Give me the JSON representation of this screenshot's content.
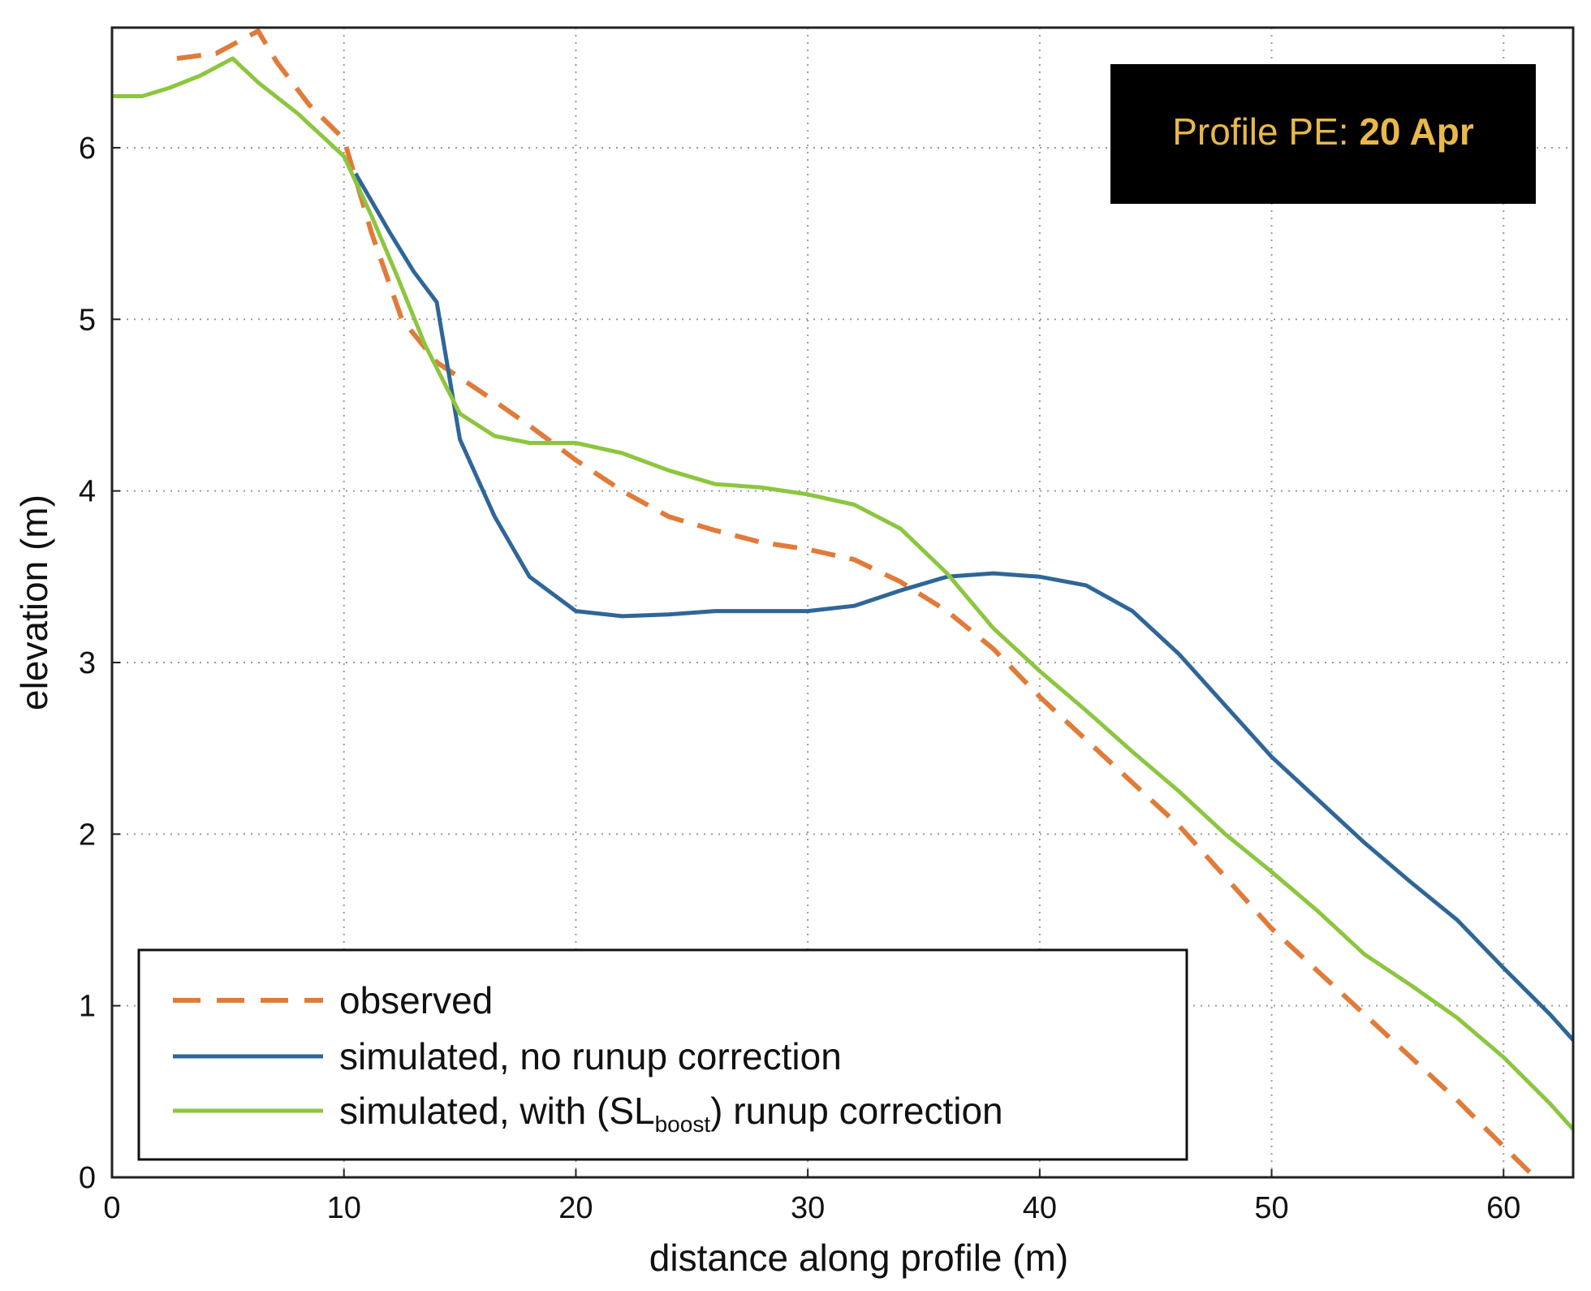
{
  "chart_data": {
    "type": "line",
    "xlabel": "distance along profile (m)",
    "ylabel": "elevation (m)",
    "xlim": [
      0,
      63
    ],
    "ylim": [
      0,
      6.7
    ],
    "xticks": [
      0,
      10,
      20,
      30,
      40,
      50,
      60
    ],
    "yticks": [
      0,
      1,
      2,
      3,
      4,
      5,
      6
    ],
    "grid": true,
    "annotation": {
      "prefix": "Profile PE: ",
      "bold": "20 Apr",
      "background": "#000000",
      "color": "#e8b84a"
    },
    "legend": {
      "placement": "bottom-left"
    },
    "series": [
      {
        "name": "observed",
        "color": "#e07b39",
        "style": "dashed",
        "x": [
          2.8,
          4.5,
          6.3,
          7.1,
          8.5,
          10.0,
          11.2,
          12.5,
          14.0,
          16.0,
          18.0,
          20.0,
          22.0,
          24.0,
          26.0,
          28.0,
          30.0,
          32.0,
          34.0,
          36.0,
          38.0,
          40.0,
          42.0,
          44.0,
          46.0,
          48.0,
          50.0,
          52.0,
          54.0,
          56.0,
          58.0,
          60.0,
          61.2
        ],
        "values": [
          6.52,
          6.55,
          6.68,
          6.5,
          6.25,
          6.05,
          5.5,
          5.0,
          4.75,
          4.57,
          4.38,
          4.18,
          4.0,
          3.85,
          3.77,
          3.7,
          3.66,
          3.6,
          3.47,
          3.3,
          3.08,
          2.8,
          2.55,
          2.3,
          2.05,
          1.75,
          1.45,
          1.2,
          0.95,
          0.7,
          0.45,
          0.18,
          0.02
        ]
      },
      {
        "name": "simulated, no runup correction",
        "color": "#2f6699",
        "style": "solid",
        "x": [
          10.5,
          12.0,
          13.0,
          14.0,
          15.0,
          16.5,
          18.0,
          20.0,
          22.0,
          24.0,
          26.0,
          28.0,
          30.0,
          32.0,
          34.0,
          36.0,
          38.0,
          40.0,
          42.0,
          44.0,
          46.0,
          48.0,
          50.0,
          52.0,
          54.0,
          56.0,
          58.0,
          60.0,
          62.0,
          63.0
        ],
        "values": [
          5.85,
          5.5,
          5.28,
          5.1,
          4.3,
          3.85,
          3.5,
          3.3,
          3.27,
          3.28,
          3.3,
          3.3,
          3.3,
          3.33,
          3.42,
          3.5,
          3.52,
          3.5,
          3.45,
          3.3,
          3.05,
          2.75,
          2.45,
          2.2,
          1.95,
          1.72,
          1.5,
          1.22,
          0.95,
          0.8
        ]
      },
      {
        "name": "simulated, with (SLboost) runup correction",
        "color": "#8cc63f",
        "style": "solid",
        "x": [
          0.0,
          1.3,
          2.5,
          3.8,
          5.2,
          6.3,
          8.0,
          10.0,
          11.2,
          12.3,
          13.5,
          15.0,
          16.5,
          18.0,
          20.0,
          22.0,
          24.0,
          26.0,
          28.0,
          30.0,
          32.0,
          34.0,
          36.0,
          38.0,
          40.0,
          42.0,
          44.0,
          46.0,
          48.0,
          50.0,
          52.0,
          54.0,
          56.0,
          58.0,
          60.0,
          62.0,
          63.0
        ],
        "values": [
          6.3,
          6.3,
          6.35,
          6.42,
          6.52,
          6.38,
          6.2,
          5.95,
          5.6,
          5.25,
          4.85,
          4.45,
          4.32,
          4.28,
          4.28,
          4.22,
          4.12,
          4.04,
          4.02,
          3.98,
          3.92,
          3.78,
          3.52,
          3.2,
          2.95,
          2.72,
          2.48,
          2.25,
          2.0,
          1.78,
          1.55,
          1.3,
          1.12,
          0.93,
          0.7,
          0.43,
          0.28
        ]
      }
    ],
    "legend_text": {
      "observed": "observed",
      "no_runup": "simulated, no runup correction",
      "with_runup_prefix": "simulated, with (SL",
      "with_runup_sub": "boost",
      "with_runup_suffix": ") runup correction"
    }
  }
}
